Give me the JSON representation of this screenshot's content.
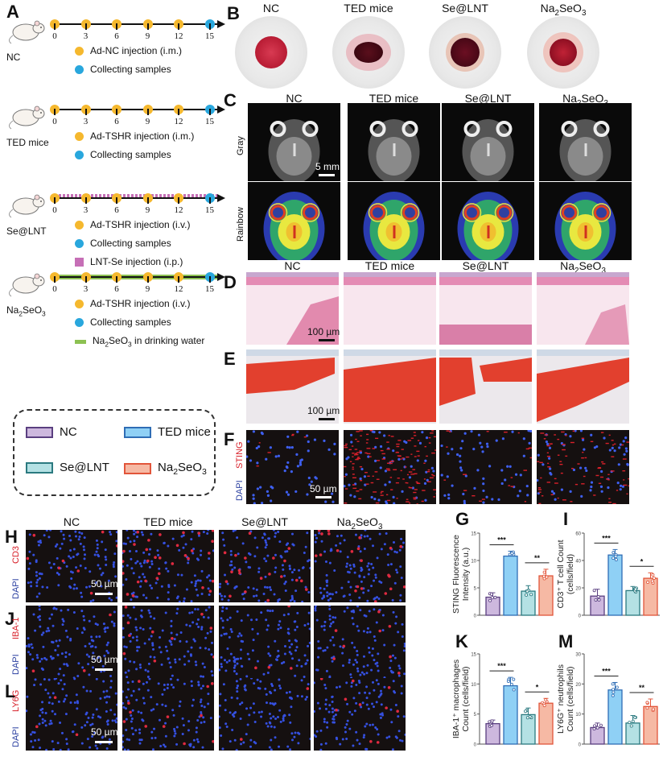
{
  "groups": [
    "NC",
    "TED mice",
    "Se@LNT",
    "Na2SeO3"
  ],
  "group_colors": {
    "NC": {
      "fill": "#cdb8de",
      "stroke": "#5a3f80"
    },
    "TED mice": {
      "fill": "#8fd0f5",
      "stroke": "#2f6db5"
    },
    "Se@LNT": {
      "fill": "#b4e1e4",
      "stroke": "#2b7a80"
    },
    "Na2SeO3": {
      "fill": "#f6b9a4",
      "stroke": "#e2553a"
    }
  },
  "panel_letters": {
    "A": "A",
    "B": "B",
    "C": "C",
    "D": "D",
    "E": "E",
    "F": "F",
    "G": "G",
    "H": "H",
    "I": "I",
    "J": "J",
    "K": "K",
    "L": "L",
    "M": "M"
  },
  "panel_a": {
    "timeline_ticks": [
      "0",
      "3",
      "6",
      "9",
      "12",
      "15"
    ],
    "schedules": [
      {
        "group": "NC",
        "legend": [
          {
            "icon": "yellow-dot",
            "text": "Ad-NC injection (i.m.)"
          },
          {
            "icon": "blue-dot",
            "text": "Collecting samples"
          }
        ]
      },
      {
        "group": "TED mice",
        "legend": [
          {
            "icon": "yellow-dot",
            "text": "Ad-TSHR injection (i.m.)"
          },
          {
            "icon": "blue-dot",
            "text": "Collecting samples"
          }
        ]
      },
      {
        "group": "Se@LNT",
        "legend": [
          {
            "icon": "yellow-dot",
            "text": "Ad-TSHR injection (i.v.)"
          },
          {
            "icon": "blue-dot",
            "text": "Collecting samples"
          },
          {
            "icon": "purple-square",
            "text": "LNT-Se injection (i.p.)"
          }
        ]
      },
      {
        "group": "Na2SeO3",
        "legend": [
          {
            "icon": "yellow-dot",
            "text": "Ad-TSHR injection (i.v.)"
          },
          {
            "icon": "blue-dot",
            "text": "Collecting samples"
          },
          {
            "icon": "green-bar",
            "text": "Na2SeO3 in drinking water"
          }
        ]
      }
    ],
    "colors": {
      "injection": "#f5b82e",
      "collect": "#29a7dd",
      "lnt_se": "#c66fb6",
      "water": "#8cc152"
    }
  },
  "legend_box": [
    {
      "label": "NC"
    },
    {
      "label": "TED mice"
    },
    {
      "label": "Se@LNT"
    },
    {
      "label": "Na2SeO3"
    }
  ],
  "panel_c": {
    "rows": [
      "Gray",
      "Rainbow"
    ],
    "scalebar": "5 mm"
  },
  "panel_d": {
    "scalebar": "100 µm"
  },
  "panel_e": {
    "scalebar": "100 µm"
  },
  "panel_f": {
    "stain_red": "STING",
    "stain_blue": "DAPI",
    "scalebar": "50 µm"
  },
  "panel_h": {
    "stain_red": "CD3",
    "stain_blue": "DAPI",
    "scalebar": "50 µm"
  },
  "panel_j": {
    "stain_red": "IBA-1",
    "stain_blue": "DAPI",
    "scalebar": "50 µm"
  },
  "panel_l": {
    "stain_red": "LY6G",
    "stain_blue": "DAPI",
    "scalebar": "50 µm"
  },
  "chart_data": [
    {
      "panel": "G",
      "type": "bar",
      "categories": [
        "NC",
        "TED mice",
        "Se@LNT",
        "Na2SeO3"
      ],
      "values": [
        3.3,
        10.8,
        4.4,
        7.2
      ],
      "errors": [
        0.8,
        0.9,
        1.0,
        1.2
      ],
      "ylabel": "STING Fluorescence Intensity (a.u.)",
      "ylim": [
        0,
        15
      ],
      "yticks": [
        0,
        5,
        10,
        15
      ],
      "significance": [
        {
          "between": [
            "NC",
            "TED mice"
          ],
          "label": "***"
        },
        {
          "between": [
            "Se@LNT",
            "Na2SeO3"
          ],
          "label": "**"
        }
      ]
    },
    {
      "panel": "I",
      "type": "bar",
      "categories": [
        "NC",
        "TED mice",
        "Se@LNT",
        "Na2SeO3"
      ],
      "values": [
        14,
        44,
        18,
        27
      ],
      "errors": [
        5,
        4,
        3,
        4
      ],
      "ylabel": "CD3+ T cell Count (cells/field)",
      "ylim": [
        0,
        60
      ],
      "yticks": [
        0,
        20,
        40,
        60
      ],
      "significance": [
        {
          "between": [
            "NC",
            "TED mice"
          ],
          "label": "***"
        },
        {
          "between": [
            "Se@LNT",
            "Na2SeO3"
          ],
          "label": "*"
        }
      ]
    },
    {
      "panel": "K",
      "type": "bar",
      "categories": [
        "NC",
        "TED mice",
        "Se@LNT",
        "Na2SeO3"
      ],
      "values": [
        3.4,
        9.7,
        4.9,
        6.8
      ],
      "errors": [
        0.6,
        1.4,
        1.1,
        0.8
      ],
      "ylabel": "IBA-1+ macrophages Count (cells/field)",
      "ylim": [
        0,
        15
      ],
      "yticks": [
        0,
        5,
        10,
        15
      ],
      "significance": [
        {
          "between": [
            "NC",
            "TED mice"
          ],
          "label": "***"
        },
        {
          "between": [
            "Se@LNT",
            "Na2SeO3"
          ],
          "label": "*"
        }
      ]
    },
    {
      "panel": "M",
      "type": "bar",
      "categories": [
        "NC",
        "TED mice",
        "Se@LNT",
        "Na2SeO3"
      ],
      "values": [
        5.5,
        18,
        7,
        12.5
      ],
      "errors": [
        1.5,
        2.5,
        2.5,
        2.5
      ],
      "ylabel": "LY6G+ neutrophils Count (cells/field)",
      "ylim": [
        0,
        30
      ],
      "yticks": [
        0,
        10,
        20,
        30
      ],
      "significance": [
        {
          "between": [
            "NC",
            "TED mice"
          ],
          "label": "***"
        },
        {
          "between": [
            "Se@LNT",
            "Na2SeO3"
          ],
          "label": "**"
        }
      ]
    }
  ]
}
